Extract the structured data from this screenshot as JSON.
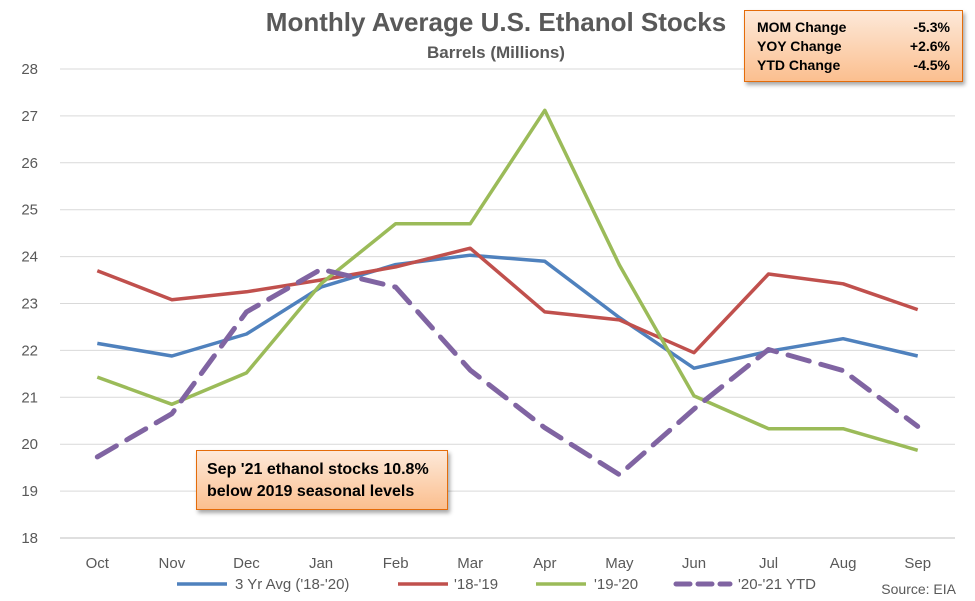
{
  "colors": {
    "series": [
      "#4f81bd",
      "#c0504d",
      "#9bbb59",
      "#8064a2"
    ],
    "box_border": "#e46c0a",
    "box_fill_top": "#fde9d9",
    "box_fill_bottom": "#fbbf8f",
    "grid": "#d9d9d9",
    "text": "#595959"
  },
  "stats": [
    {
      "label": "MOM Change",
      "value": "-5.3%"
    },
    {
      "label": "YOY Change",
      "value": "+2.6%"
    },
    {
      "label": "YTD Change",
      "value": "-4.5%"
    }
  ],
  "note": {
    "line1": "Sep '21 ethanol stocks 10.8%",
    "line2": "below 2019 seasonal levels"
  },
  "source": "Source: EIA",
  "chart_data": {
    "type": "line",
    "title": "Monthly Average U.S. Ethanol Stocks",
    "subtitle": "Barrels (Millions)",
    "categories": [
      "Oct",
      "Nov",
      "Dec",
      "Jan",
      "Feb",
      "Mar",
      "Apr",
      "May",
      "Jun",
      "Jul",
      "Aug",
      "Sep"
    ],
    "ylim": [
      18,
      28
    ],
    "yticks": [
      18,
      19,
      20,
      21,
      22,
      23,
      24,
      25,
      26,
      27,
      28
    ],
    "grid": "horizontal",
    "legend_position": "bottom",
    "series": [
      {
        "name": "3 Yr Avg ('18-'20)",
        "style": "solid",
        "values": [
          22.15,
          21.88,
          22.35,
          23.35,
          23.83,
          24.03,
          23.9,
          22.7,
          21.62,
          21.98,
          22.25,
          21.88
        ]
      },
      {
        "name": "'18-'19",
        "style": "solid",
        "values": [
          23.7,
          23.08,
          23.25,
          23.5,
          23.78,
          24.18,
          22.82,
          22.65,
          21.95,
          23.63,
          23.42,
          22.87
        ]
      },
      {
        "name": "'19-'20",
        "style": "solid",
        "values": [
          21.43,
          20.85,
          21.52,
          23.42,
          24.7,
          24.7,
          27.12,
          23.82,
          21.03,
          20.33,
          20.33,
          19.87
        ]
      },
      {
        "name": "'20-'21 YTD",
        "style": "dashed",
        "values": [
          19.73,
          20.65,
          22.82,
          23.73,
          23.35,
          21.58,
          20.35,
          19.35,
          20.75,
          22.02,
          21.57,
          20.38
        ]
      }
    ]
  }
}
